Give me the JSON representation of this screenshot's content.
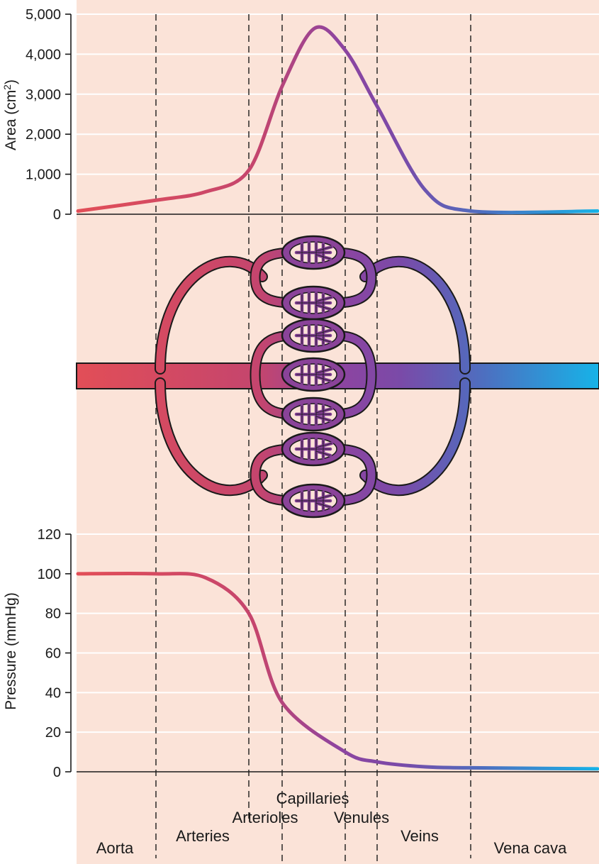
{
  "colors": {
    "background_panel": "#fbe3d8",
    "gridline": "#ffffff",
    "artery_red": "#e05058",
    "capillary_purple": "#8e44a0",
    "vein_blue": "#1ab0e8",
    "outline": "#1a1a1a"
  },
  "regions": [
    {
      "id": "aorta",
      "label": "Aorta"
    },
    {
      "id": "arteries",
      "label": "Arteries"
    },
    {
      "id": "arterioles",
      "label": "Arterioles"
    },
    {
      "id": "capillaries",
      "label": "Capillaries"
    },
    {
      "id": "venules",
      "label": "Venules"
    },
    {
      "id": "veins",
      "label": "Veins"
    },
    {
      "id": "vena_cava",
      "label": "Vena cava"
    }
  ],
  "chart_data": [
    {
      "type": "line",
      "title": "",
      "ylabel": "Area (cm²)",
      "ylabel_base": "Area (cm",
      "ylabel_sup": "2",
      "ylabel_end": ")",
      "ylim": [
        0,
        5000
      ],
      "yticks": [
        0,
        1000,
        2000,
        3000,
        4000,
        5000
      ],
      "ytick_labels": [
        "0",
        "1,000",
        "2,000",
        "3,000",
        "4,000",
        "5,000"
      ],
      "x_categories": [
        "Aorta",
        "Arteries",
        "Arterioles",
        "Capillaries",
        "Venules",
        "Veins",
        "Vena cava"
      ],
      "grid": true,
      "points": [
        {
          "region": "Aorta (start)",
          "y": 80
        },
        {
          "region": "Aorta / Arteries boundary",
          "y": 350
        },
        {
          "region": "Arteries",
          "y": 560
        },
        {
          "region": "Arteries / Arterioles boundary",
          "y": 1100
        },
        {
          "region": "Arterioles / Capillaries boundary",
          "y": 3200
        },
        {
          "region": "Capillaries (peak)",
          "y": 4650
        },
        {
          "region": "Capillaries / Venules boundary",
          "y": 4100
        },
        {
          "region": "Venules / Veins boundary",
          "y": 2700
        },
        {
          "region": "Veins",
          "y": 600
        },
        {
          "region": "Veins / Vena cava boundary",
          "y": 80
        },
        {
          "region": "Vena cava (end)",
          "y": 80
        }
      ]
    },
    {
      "type": "line",
      "title": "",
      "ylabel": "Pressure (mmHg)",
      "ylim": [
        0,
        120
      ],
      "yticks": [
        0,
        20,
        40,
        60,
        80,
        100,
        120
      ],
      "ytick_labels": [
        "0",
        "20",
        "40",
        "60",
        "80",
        "100",
        "120"
      ],
      "x_categories": [
        "Aorta",
        "Arteries",
        "Arterioles",
        "Capillaries",
        "Venules",
        "Veins",
        "Vena cava"
      ],
      "grid": true,
      "points": [
        {
          "region": "Aorta (start)",
          "y": 100
        },
        {
          "region": "Aorta / Arteries boundary",
          "y": 100
        },
        {
          "region": "Arteries",
          "y": 98
        },
        {
          "region": "Arteries / Arterioles boundary",
          "y": 80
        },
        {
          "region": "Arterioles / Capillaries boundary",
          "y": 35
        },
        {
          "region": "Capillaries / Venules boundary",
          "y": 10
        },
        {
          "region": "Venules / Veins boundary",
          "y": 5
        },
        {
          "region": "Veins",
          "y": 2.5
        },
        {
          "region": "Veins / Vena cava boundary",
          "y": 2
        },
        {
          "region": "Vena cava (end)",
          "y": 1.5
        }
      ]
    }
  ]
}
